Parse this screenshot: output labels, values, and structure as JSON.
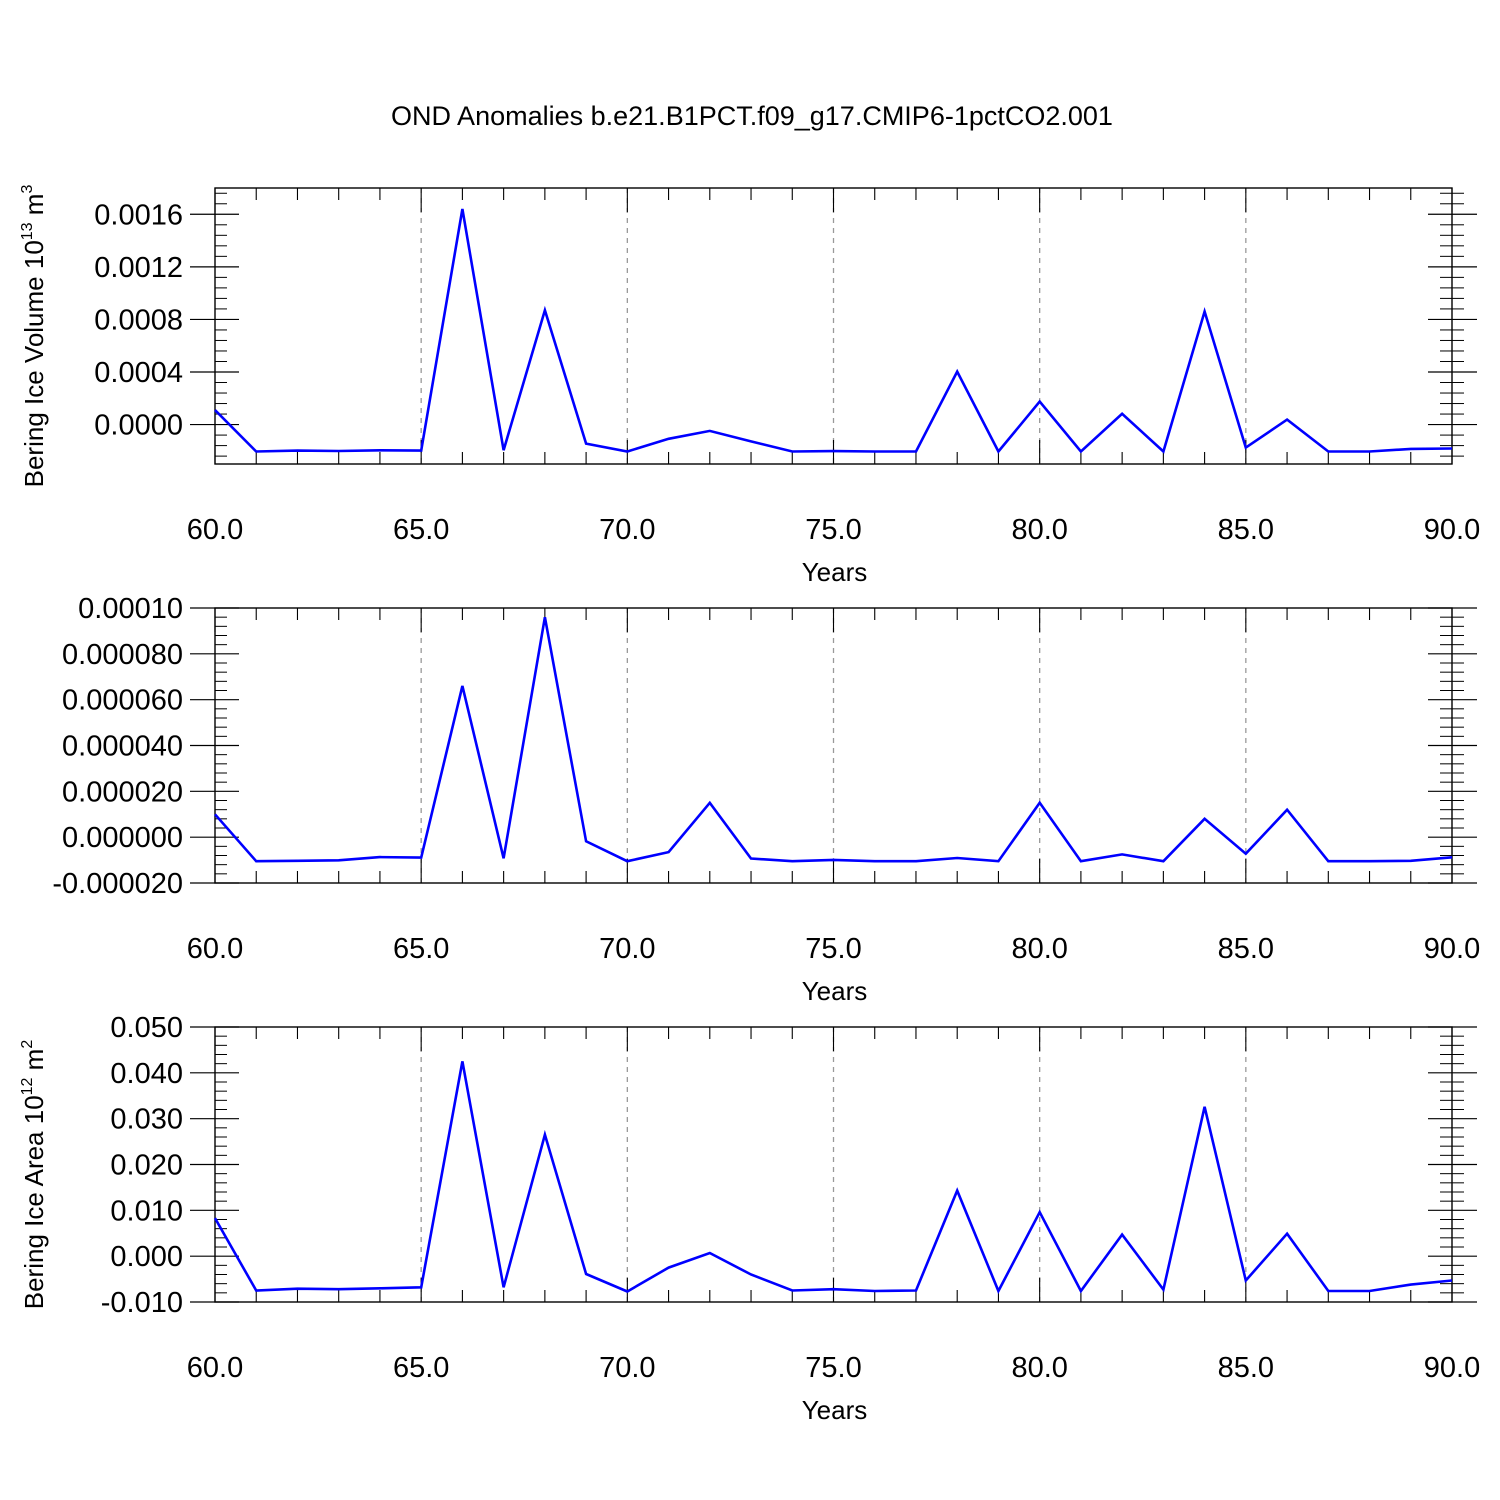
{
  "title": "OND Anomalies b.e21.B1PCT.f09_g17.CMIP6-1pctCO2.001",
  "line_color": "#0000ff",
  "chart_data": [
    {
      "type": "line",
      "xlabel": "Years",
      "ylabel": {
        "prefix": "Bering Ice Volume 10",
        "sup": "13",
        "suffix": " m",
        "sup2": "3"
      },
      "xlim": [
        60,
        90
      ],
      "ylim": [
        -0.0003,
        0.0018
      ],
      "grid": "vertical-dashed",
      "x_ticks": [
        "60.0",
        "65.0",
        "70.0",
        "75.0",
        "80.0",
        "85.0",
        "90.0"
      ],
      "y_ticks": [
        {
          "value": 0.0016,
          "label": "0.0016"
        },
        {
          "value": 0.0012,
          "label": "0.0012"
        },
        {
          "value": 0.0008,
          "label": "0.0008"
        },
        {
          "value": 0.0004,
          "label": "0.0004"
        },
        {
          "value": 0.0,
          "label": "0.0000"
        }
      ],
      "series": [
        {
          "x": [
            60,
            61,
            62,
            63,
            64,
            65,
            66,
            67,
            68,
            69,
            70,
            71,
            72,
            73,
            74,
            75,
            76,
            77,
            78,
            79,
            80,
            81,
            82,
            83,
            84,
            85,
            86,
            87,
            88,
            89,
            90
          ],
          "values": [
            0.00011,
            -0.000205,
            -0.000198,
            -0.000201,
            -0.000196,
            -0.000198,
            0.00164,
            -0.000195,
            0.00087,
            -0.000145,
            -0.000205,
            -0.000108,
            -4.8e-05,
            -0.000128,
            -0.000205,
            -0.000202,
            -0.000205,
            -0.000205,
            0.000403,
            -0.000205,
            0.000175,
            -0.000205,
            8.2e-05,
            -0.000205,
            0.00086,
            -0.000175,
            3.8e-05,
            -0.000205,
            -0.000205,
            -0.000185,
            -0.000182
          ]
        }
      ]
    },
    {
      "type": "line",
      "xlabel": "Years",
      "ylabel": null,
      "xlim": [
        60,
        90
      ],
      "ylim": [
        -2e-05,
        0.0001
      ],
      "grid": "vertical-dashed",
      "x_ticks": [
        "60.0",
        "65.0",
        "70.0",
        "75.0",
        "80.0",
        "85.0",
        "90.0"
      ],
      "y_ticks": [
        {
          "value": 0.0001,
          "label": "0.00010"
        },
        {
          "value": 8e-05,
          "label": "0.000080"
        },
        {
          "value": 6e-05,
          "label": "0.000060"
        },
        {
          "value": 4e-05,
          "label": "0.000040"
        },
        {
          "value": 2e-05,
          "label": "0.000020"
        },
        {
          "value": 0.0,
          "label": "0.000000"
        },
        {
          "value": -2e-05,
          "label": "-0.000020"
        }
      ],
      "series": [
        {
          "x": [
            60,
            61,
            62,
            63,
            64,
            65,
            66,
            67,
            68,
            69,
            70,
            71,
            72,
            73,
            74,
            75,
            76,
            77,
            78,
            79,
            80,
            81,
            82,
            83,
            84,
            85,
            86,
            87,
            88,
            89,
            90
          ],
          "values": [
            1e-05,
            -1.05e-05,
            -1.03e-05,
            -1.01e-05,
            -8.7e-06,
            -8.9e-06,
            6.6e-05,
            -9.2e-06,
            9.6e-05,
            -1.8e-06,
            -1.05e-05,
            -6.5e-06,
            1.5e-05,
            -9.3e-06,
            -1.05e-05,
            -9.9e-06,
            -1.05e-05,
            -1.05e-05,
            -9.1e-06,
            -1.05e-05,
            1.5e-05,
            -1.05e-05,
            -7.5e-06,
            -1.05e-05,
            8e-06,
            -7.2e-06,
            1.2e-05,
            -1.05e-05,
            -1.05e-05,
            -1.03e-05,
            -8.8e-06
          ]
        }
      ]
    },
    {
      "type": "line",
      "xlabel": "Years",
      "ylabel": {
        "prefix": "Bering Ice Area 10",
        "sup": "12",
        "suffix": " m",
        "sup2": "2"
      },
      "xlim": [
        60,
        90
      ],
      "ylim": [
        -0.01,
        0.05
      ],
      "grid": "vertical-dashed",
      "x_ticks": [
        "60.0",
        "65.0",
        "70.0",
        "75.0",
        "80.0",
        "85.0",
        "90.0"
      ],
      "y_ticks": [
        {
          "value": 0.05,
          "label": "0.050"
        },
        {
          "value": 0.04,
          "label": "0.040"
        },
        {
          "value": 0.03,
          "label": "0.030"
        },
        {
          "value": 0.02,
          "label": "0.020"
        },
        {
          "value": 0.01,
          "label": "0.010"
        },
        {
          "value": 0.0,
          "label": "0.000"
        },
        {
          "value": -0.01,
          "label": "-0.010"
        }
      ],
      "series": [
        {
          "x": [
            60,
            61,
            62,
            63,
            64,
            65,
            66,
            67,
            68,
            69,
            70,
            71,
            72,
            73,
            74,
            75,
            76,
            77,
            78,
            79,
            80,
            81,
            82,
            83,
            84,
            85,
            86,
            87,
            88,
            89,
            90
          ],
          "values": [
            0.0083,
            -0.0075,
            -0.0071,
            -0.0072,
            -0.007,
            -0.0068,
            0.0425,
            -0.0068,
            0.0265,
            -0.0039,
            -0.0077,
            -0.0025,
            0.0007,
            -0.004,
            -0.0075,
            -0.0072,
            -0.0076,
            -0.0075,
            0.0143,
            -0.0076,
            0.0096,
            -0.0076,
            0.0047,
            -0.0073,
            0.0326,
            -0.0053,
            0.0049,
            -0.0076,
            -0.0076,
            -0.0062,
            -0.0053
          ]
        }
      ]
    }
  ]
}
